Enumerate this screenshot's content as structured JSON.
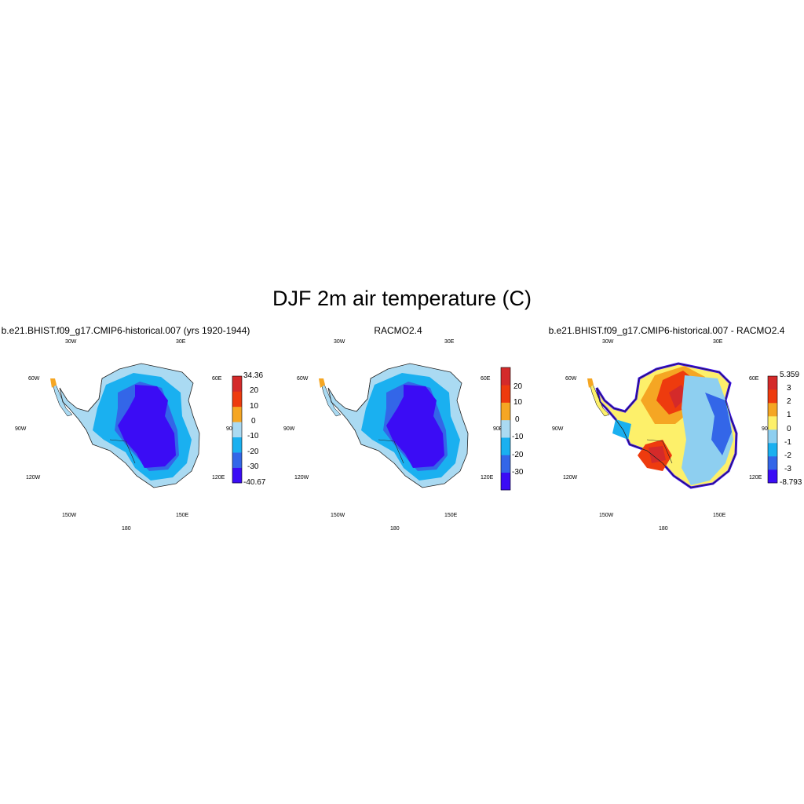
{
  "figure": {
    "title": "DJF 2m air temperature (C)"
  },
  "panels": [
    {
      "title": "b.e21.BHIST.f09_g17.CMIP6-historical.007 (yrs 1920-1944)",
      "lon_labels": [
        "30W",
        "30E",
        "60W",
        "60E",
        "90W",
        "90E",
        "120W",
        "120E",
        "150W",
        "150E",
        "180"
      ],
      "colorbar": {
        "colors": [
          "#3b0cf5",
          "#3366e8",
          "#1ab0f0",
          "#aadaf2",
          "#f5a623",
          "#ee3b0e",
          "#d42a2a"
        ],
        "labels": [
          "34.36",
          "20",
          "10",
          "0",
          "-10",
          "-20",
          "-30",
          "-40.67"
        ]
      }
    },
    {
      "title": "RACMO2.4",
      "lon_labels": [
        "30W",
        "30E",
        "60W",
        "60E",
        "90W",
        "90E",
        "120W",
        "120E",
        "150W",
        "150E",
        "180"
      ],
      "colorbar": {
        "colors": [
          "#3b0cf5",
          "#3366e8",
          "#1ab0f0",
          "#aadaf2",
          "#f5a623",
          "#ee3b0e",
          "#d42a2a"
        ],
        "labels": [
          "20",
          "10",
          "0",
          "-10",
          "-20",
          "-30"
        ]
      }
    },
    {
      "title": "b.e21.BHIST.f09_g17.CMIP6-historical.007 - RACMO2.4",
      "lon_labels": [
        "30W",
        "30E",
        "60W",
        "60E",
        "90W",
        "90E",
        "120W",
        "120E",
        "150W",
        "150E",
        "180"
      ],
      "colorbar": {
        "colors": [
          "#3b0cf5",
          "#3366e8",
          "#1ab0f0",
          "#8ecff0",
          "#fdf06a",
          "#f5a623",
          "#ee3b0e",
          "#d42a2a"
        ],
        "labels": [
          "5.359",
          "3",
          "2",
          "1",
          "0",
          "-1",
          "-2",
          "-3",
          "-8.793"
        ]
      }
    }
  ]
}
